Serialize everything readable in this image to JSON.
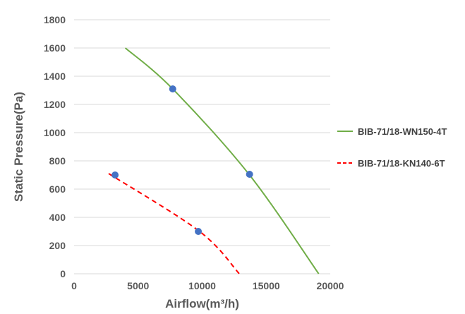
{
  "chart_data": {
    "type": "line",
    "xlabel": "Airflow(m³/h)",
    "ylabel": "Static Pressure(Pa)",
    "xlim": [
      0,
      20000
    ],
    "ylim": [
      0,
      1800
    ],
    "x_ticks": [
      0,
      5000,
      10000,
      15000,
      20000
    ],
    "y_ticks": [
      0,
      200,
      400,
      600,
      800,
      1000,
      1200,
      1400,
      1600,
      1800
    ],
    "grid": "horizontal",
    "legend_position": "right",
    "series": [
      {
        "name": "BIB-71/18-WN150-4T",
        "color": "#70AD47",
        "style": "solid",
        "curve": [
          [
            4000,
            1600
          ],
          [
            7700,
            1310
          ],
          [
            13700,
            700
          ],
          [
            19100,
            0
          ]
        ],
        "markers": [
          [
            7700,
            1310
          ],
          [
            13700,
            705
          ]
        ]
      },
      {
        "name": "BIB-71/18-KN140-6T",
        "color": "#FF0000",
        "style": "dashed",
        "curve": [
          [
            2700,
            710
          ],
          [
            9800,
            300
          ],
          [
            12900,
            0
          ]
        ],
        "markers": [
          [
            3200,
            700
          ],
          [
            9700,
            300
          ]
        ]
      }
    ],
    "marker_color": "#4472C4"
  }
}
